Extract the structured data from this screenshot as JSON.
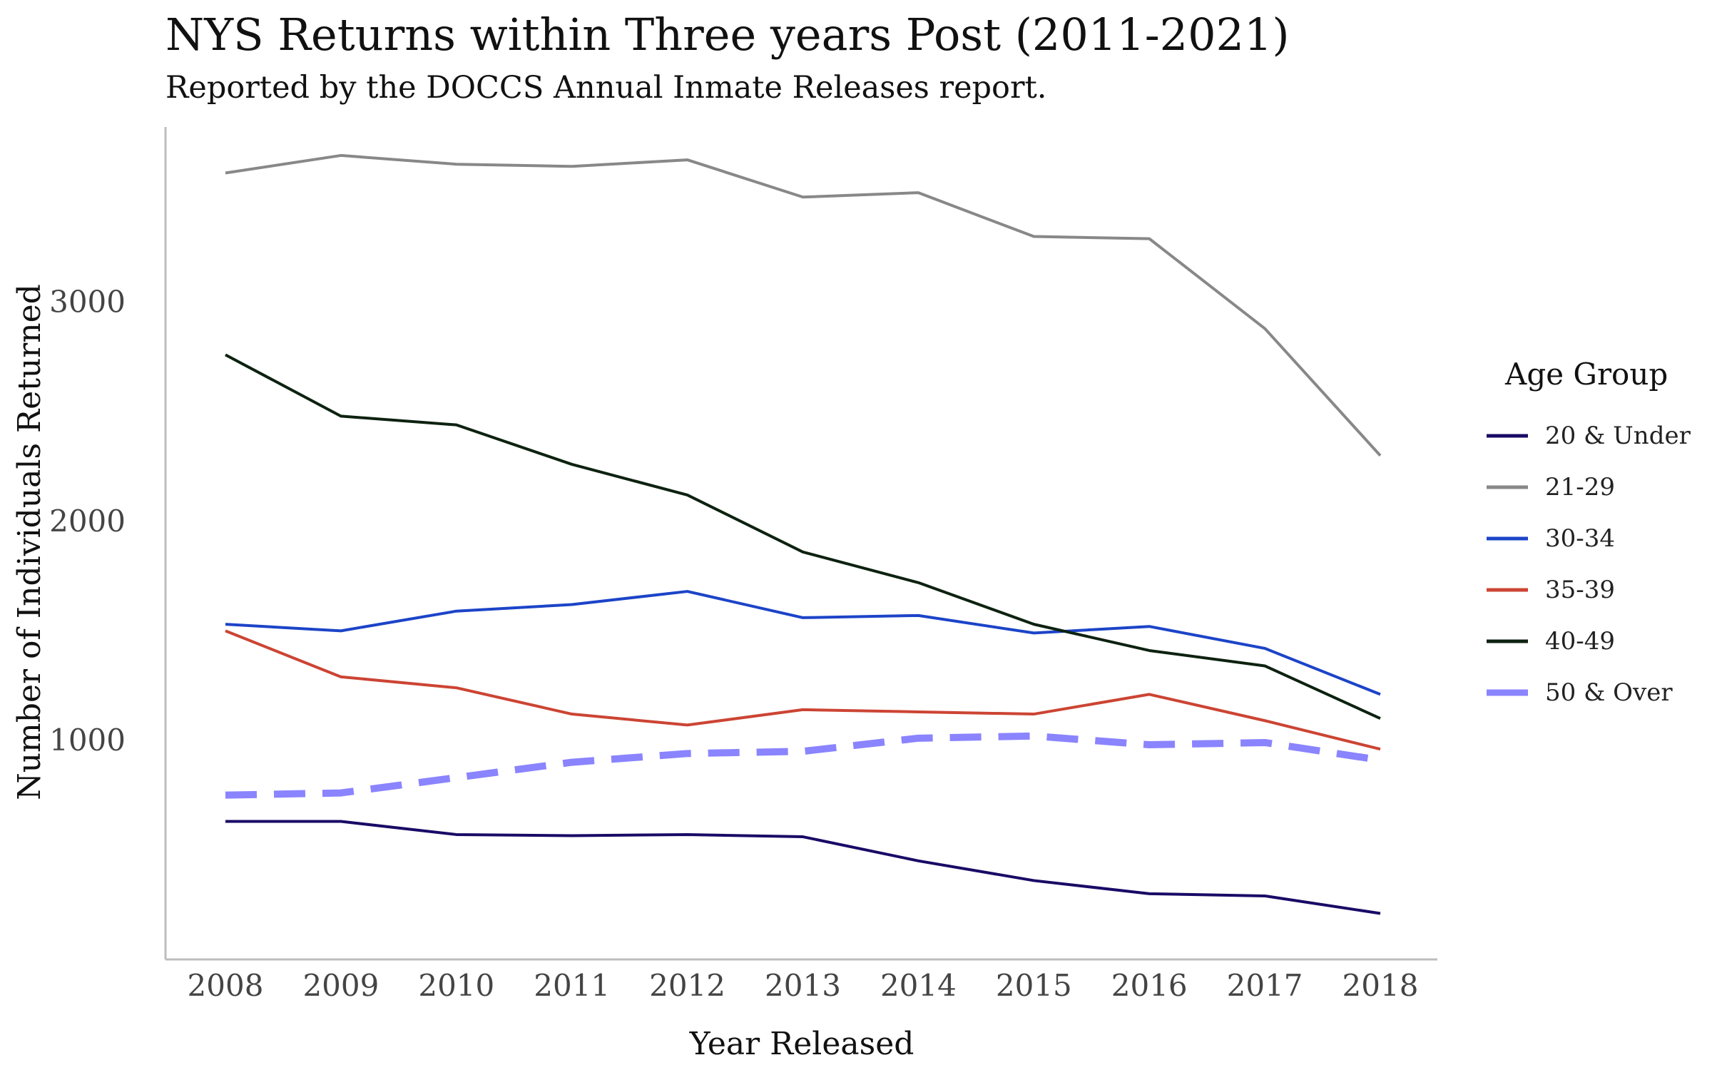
{
  "chart_data": {
    "type": "line",
    "title": "NYS Returns within Three years Post (2011-2021)",
    "subtitle": "Reported by the DOCCS Annual Inmate Releases report.",
    "xlabel": "Year Released",
    "ylabel": "Number of Individuals Returned",
    "x": [
      2008,
      2009,
      2010,
      2011,
      2012,
      2013,
      2014,
      2015,
      2016,
      2017,
      2018
    ],
    "ylim": [
      0,
      3800
    ],
    "yticks": [
      1000,
      2000,
      3000
    ],
    "grid": false,
    "legend_title": "Age Group",
    "legend_position": "right",
    "series": [
      {
        "name": "20 & Under",
        "color": "#1a0a66",
        "dashed": false,
        "values": [
          630,
          630,
          570,
          565,
          570,
          560,
          450,
          360,
          300,
          290,
          210
        ]
      },
      {
        "name": "21-29",
        "color": "#888888",
        "dashed": false,
        "values": [
          3590,
          3670,
          3630,
          3620,
          3650,
          3480,
          3500,
          3300,
          3290,
          2880,
          2300
        ]
      },
      {
        "name": "30-34",
        "color": "#1c44c8",
        "dashed": false,
        "values": [
          1530,
          1500,
          1590,
          1620,
          1680,
          1560,
          1570,
          1490,
          1520,
          1420,
          1210
        ]
      },
      {
        "name": "35-39",
        "color": "#cc4433",
        "dashed": false,
        "values": [
          1500,
          1290,
          1240,
          1120,
          1070,
          1140,
          1130,
          1120,
          1210,
          1090,
          960
        ]
      },
      {
        "name": "40-49",
        "color": "#0d2210",
        "dashed": false,
        "values": [
          2760,
          2480,
          2440,
          2260,
          2120,
          1860,
          1720,
          1530,
          1410,
          1340,
          1100
        ]
      },
      {
        "name": "50 & Over",
        "color": "#8a84ff",
        "dashed": true,
        "values": [
          750,
          760,
          830,
          900,
          940,
          950,
          1010,
          1020,
          980,
          990,
          910
        ]
      }
    ]
  }
}
